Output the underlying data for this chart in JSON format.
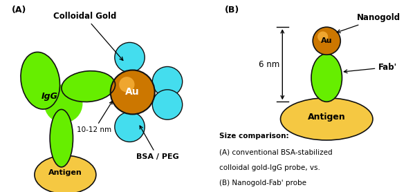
{
  "fig_width": 6.0,
  "fig_height": 2.78,
  "dpi": 100,
  "bg_color": "#ffffff",
  "green_color": "#66ee00",
  "green_edge": "#111111",
  "gold_dark": "#b05800",
  "gold_mid": "#cc7700",
  "gold_light": "#ffbb44",
  "cyan_color": "#44ddee",
  "cyan_edge": "#111111",
  "antigen_color": "#f5c842",
  "antigen_edge": "#111111",
  "label_A": "(A)",
  "label_B": "(B)",
  "label_colloidal": "Colloidal Gold",
  "label_IgG": "IgG",
  "label_Au": "Au",
  "label_antigen": "Antigen",
  "label_bsa": "BSA / PEG",
  "label_10nm": "10-12 nm",
  "label_nanogold": "Nanogold",
  "label_fab": "Fab'",
  "label_6nm": "6 nm",
  "caption_line1": "Size comparison:",
  "caption_line2": "(A) conventional BSA-stabilized",
  "caption_line3": "colloidal gold-IgG probe, vs.",
  "caption_line4": "(B) Nanogold-Fab' probe"
}
